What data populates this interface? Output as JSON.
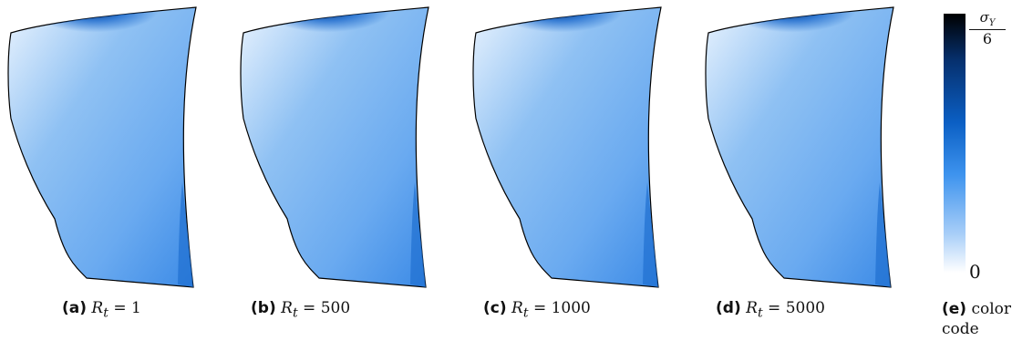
{
  "figure": {
    "panels": [
      {
        "label": "(a)",
        "caption": "R",
        "sub": "t",
        "value": "= 1"
      },
      {
        "label": "(b)",
        "caption": "R",
        "sub": "t",
        "value": "= 500"
      },
      {
        "label": "(c)",
        "caption": "R",
        "sub": "t",
        "value": "= 1000"
      },
      {
        "label": "(d)",
        "caption": "R",
        "sub": "t",
        "value": "= 5000"
      }
    ],
    "colorbar": {
      "label": "(e)",
      "caption_line1": "color",
      "caption_line2": "code",
      "top_symbol": "σ",
      "top_sub": "Y",
      "top_den": "6",
      "bottom_label": "0",
      "colors": [
        "#ffffff",
        "#3d93ee",
        "#0b5fc4",
        "#000000"
      ]
    }
  }
}
